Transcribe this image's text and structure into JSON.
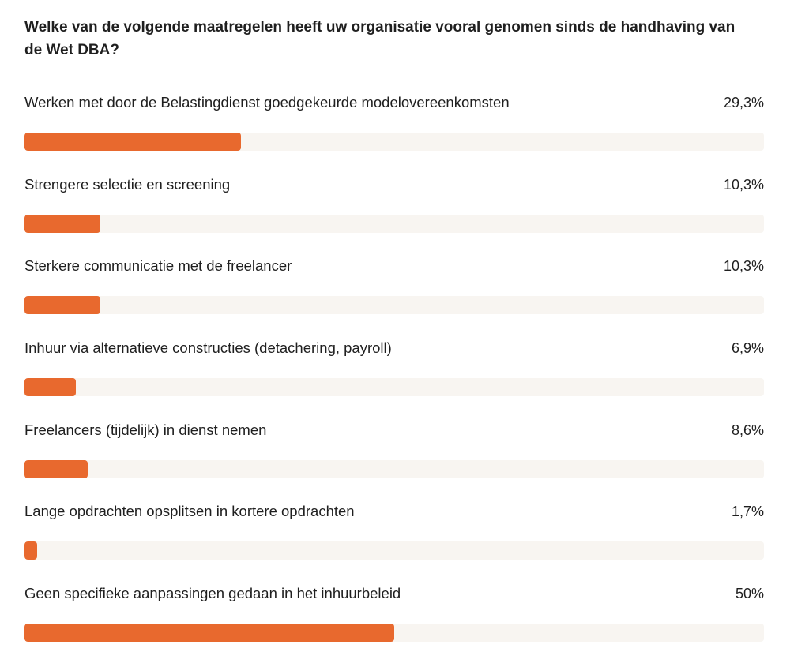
{
  "title": "Welke van de volgende maatregelen heeft uw organisatie vooral genomen sinds de handhaving van de Wet DBA?",
  "colors": {
    "bar_fill": "#e8692e",
    "bar_track": "#f8f5f1"
  },
  "chart_data": {
    "type": "bar",
    "orientation": "horizontal",
    "title": "Welke van de volgende maatregelen heeft uw organisatie vooral genomen sinds de handhaving van de Wet DBA?",
    "categories": [
      "Werken met door de Belastingdienst goedgekeurde modelovereenkomsten",
      "Strengere selectie en screening",
      "Sterkere communicatie met de freelancer",
      "Inhuur via alternatieve constructies (detachering, payroll)",
      "Freelancers (tijdelijk) in dienst nemen",
      "Lange opdrachten opsplitsen in kortere opdrachten",
      "Geen specifieke aanpassingen gedaan in het inhuurbeleid"
    ],
    "values": [
      29.3,
      10.3,
      10.3,
      6.9,
      8.6,
      1.7,
      50
    ],
    "value_labels": [
      "29,3%",
      "10,3%",
      "10,3%",
      "6,9%",
      "8,6%",
      "1,7%",
      "50%"
    ],
    "xlim": [
      0,
      100
    ],
    "unit": "%"
  }
}
